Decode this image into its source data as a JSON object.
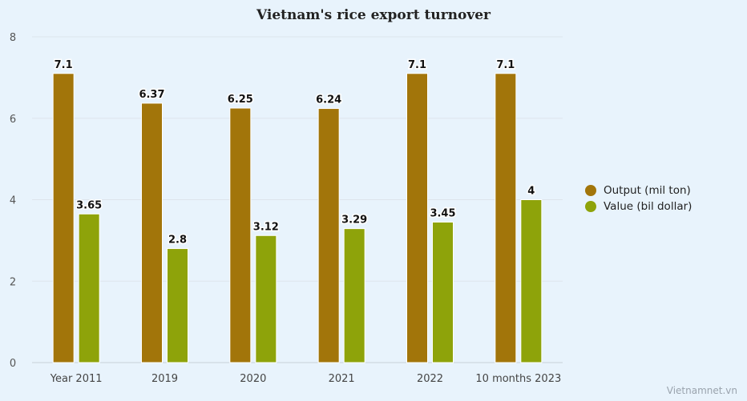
{
  "chart_data": {
    "type": "bar",
    "title": "Vietnam's rice export turnover",
    "categories": [
      "Year 2011",
      "2019",
      "2020",
      "2021",
      "2022",
      "10 months 2023"
    ],
    "series": [
      {
        "name": "Output (mil ton)",
        "values": [
          7.1,
          6.37,
          6.25,
          6.24,
          7.1,
          7.1
        ],
        "color": "#a2750a"
      },
      {
        "name": "Value (bil dollar)",
        "values": [
          3.65,
          2.8,
          3.12,
          3.29,
          3.45,
          4
        ],
        "color": "#8ea30a"
      }
    ],
    "ylim": [
      0,
      8
    ],
    "yticks": [
      0,
      2,
      4,
      6,
      8
    ],
    "grid": true,
    "legend": "right"
  },
  "legend_items": [
    {
      "label": "Output (mil ton)",
      "color": "#a2750a"
    },
    {
      "label": "Value (bil dollar)",
      "color": "#8ea30a"
    }
  ],
  "source": "Vietnamnet.vn"
}
